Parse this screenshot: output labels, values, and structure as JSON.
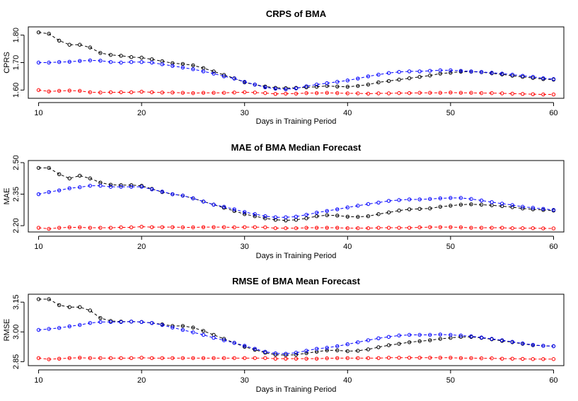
{
  "chart_data": [
    {
      "type": "line",
      "title": "CRPS of BMA",
      "xlabel": "Days in Training Period",
      "ylabel": "CPRS",
      "xlim": [
        9,
        61
      ],
      "ylim": [
        1.57,
        1.83
      ],
      "xticks": [
        10,
        20,
        30,
        40,
        50,
        60
      ],
      "yticks": [
        1.6,
        1.7,
        1.8
      ],
      "ytick_labels": [
        "1.60",
        "1.70",
        "1.80"
      ],
      "x": [
        10,
        11,
        12,
        13,
        14,
        15,
        16,
        17,
        18,
        19,
        20,
        21,
        22,
        23,
        24,
        25,
        26,
        27,
        28,
        29,
        30,
        31,
        32,
        33,
        34,
        35,
        36,
        37,
        38,
        39,
        40,
        41,
        42,
        43,
        44,
        45,
        46,
        47,
        48,
        49,
        50,
        51,
        52,
        53,
        54,
        55,
        56,
        57,
        58,
        59,
        60
      ],
      "series": [
        {
          "color": "#000000",
          "values": [
            1.81,
            1.805,
            1.78,
            1.765,
            1.765,
            1.755,
            1.735,
            1.728,
            1.725,
            1.72,
            1.718,
            1.712,
            1.705,
            1.698,
            1.695,
            1.69,
            1.68,
            1.668,
            1.655,
            1.643,
            1.628,
            1.62,
            1.613,
            1.608,
            1.607,
            1.608,
            1.61,
            1.612,
            1.615,
            1.613,
            1.612,
            1.615,
            1.62,
            1.628,
            1.633,
            1.638,
            1.643,
            1.648,
            1.653,
            1.66,
            1.663,
            1.667,
            1.667,
            1.665,
            1.661,
            1.657,
            1.652,
            1.648,
            1.644,
            1.64,
            1.638
          ]
        },
        {
          "color": "#0000ff",
          "values": [
            1.7,
            1.7,
            1.702,
            1.703,
            1.706,
            1.708,
            1.707,
            1.702,
            1.7,
            1.702,
            1.702,
            1.7,
            1.694,
            1.688,
            1.682,
            1.676,
            1.668,
            1.66,
            1.65,
            1.642,
            1.63,
            1.62,
            1.61,
            1.605,
            1.603,
            1.606,
            1.614,
            1.62,
            1.625,
            1.63,
            1.635,
            1.642,
            1.65,
            1.656,
            1.662,
            1.666,
            1.668,
            1.668,
            1.67,
            1.672,
            1.672,
            1.67,
            1.668,
            1.666,
            1.663,
            1.66,
            1.656,
            1.652,
            1.648,
            1.643,
            1.64
          ]
        },
        {
          "color": "#ff0000",
          "values": [
            1.6,
            1.595,
            1.597,
            1.598,
            1.597,
            1.592,
            1.591,
            1.592,
            1.592,
            1.592,
            1.594,
            1.592,
            1.591,
            1.591,
            1.59,
            1.589,
            1.59,
            1.59,
            1.59,
            1.591,
            1.592,
            1.591,
            1.589,
            1.586,
            1.587,
            1.587,
            1.589,
            1.589,
            1.59,
            1.589,
            1.588,
            1.588,
            1.587,
            1.588,
            1.588,
            1.589,
            1.589,
            1.59,
            1.59,
            1.59,
            1.591,
            1.59,
            1.59,
            1.589,
            1.589,
            1.588,
            1.587,
            1.586,
            1.585,
            1.584,
            1.584
          ]
        }
      ]
    },
    {
      "type": "line",
      "title": "MAE of BMA Median Forecast",
      "xlabel": "Days in Training Period",
      "ylabel": "MAE",
      "xlim": [
        9,
        61
      ],
      "ylim": [
        2.17,
        2.51
      ],
      "xticks": [
        10,
        20,
        30,
        40,
        50,
        60
      ],
      "yticks": [
        2.2,
        2.35,
        2.5
      ],
      "ytick_labels": [
        "2.20",
        "2.35",
        "2.50"
      ],
      "x": [
        10,
        11,
        12,
        13,
        14,
        15,
        16,
        17,
        18,
        19,
        20,
        21,
        22,
        23,
        24,
        25,
        26,
        27,
        28,
        29,
        30,
        31,
        32,
        33,
        34,
        35,
        36,
        37,
        38,
        39,
        40,
        41,
        42,
        43,
        44,
        45,
        46,
        47,
        48,
        49,
        50,
        51,
        52,
        53,
        54,
        55,
        56,
        57,
        58,
        59,
        60
      ],
      "series": [
        {
          "color": "#000000",
          "values": [
            2.475,
            2.475,
            2.445,
            2.425,
            2.438,
            2.425,
            2.405,
            2.395,
            2.393,
            2.393,
            2.39,
            2.375,
            2.36,
            2.35,
            2.343,
            2.33,
            2.315,
            2.3,
            2.285,
            2.27,
            2.255,
            2.245,
            2.235,
            2.228,
            2.225,
            2.228,
            2.235,
            2.245,
            2.25,
            2.248,
            2.243,
            2.242,
            2.245,
            2.255,
            2.263,
            2.272,
            2.278,
            2.28,
            2.282,
            2.29,
            2.295,
            2.3,
            2.302,
            2.3,
            2.297,
            2.293,
            2.288,
            2.282,
            2.278,
            2.275,
            2.272
          ]
        },
        {
          "color": "#0000ff",
          "values": [
            2.35,
            2.36,
            2.368,
            2.378,
            2.383,
            2.39,
            2.39,
            2.385,
            2.385,
            2.385,
            2.385,
            2.373,
            2.362,
            2.35,
            2.343,
            2.33,
            2.315,
            2.3,
            2.29,
            2.278,
            2.265,
            2.255,
            2.245,
            2.24,
            2.24,
            2.243,
            2.252,
            2.262,
            2.27,
            2.278,
            2.287,
            2.295,
            2.303,
            2.31,
            2.318,
            2.322,
            2.325,
            2.325,
            2.327,
            2.33,
            2.332,
            2.332,
            2.327,
            2.32,
            2.312,
            2.305,
            2.298,
            2.29,
            2.285,
            2.28,
            2.275
          ]
        },
        {
          "color": "#ff0000",
          "values": [
            2.19,
            2.185,
            2.19,
            2.192,
            2.192,
            2.19,
            2.19,
            2.19,
            2.192,
            2.192,
            2.195,
            2.193,
            2.193,
            2.193,
            2.192,
            2.192,
            2.193,
            2.193,
            2.193,
            2.192,
            2.193,
            2.193,
            2.192,
            2.188,
            2.188,
            2.188,
            2.19,
            2.19,
            2.19,
            2.19,
            2.188,
            2.188,
            2.188,
            2.19,
            2.19,
            2.19,
            2.19,
            2.192,
            2.193,
            2.193,
            2.193,
            2.192,
            2.19,
            2.19,
            2.19,
            2.19,
            2.188,
            2.188,
            2.188,
            2.187,
            2.187
          ]
        }
      ]
    },
    {
      "type": "line",
      "title": "RMSE of BMA Mean Forecast",
      "xlabel": "Days in Training Period",
      "ylabel": "RMSE",
      "xlim": [
        9,
        61
      ],
      "ylim": [
        2.83,
        3.19
      ],
      "xticks": [
        10,
        20,
        30,
        40,
        50,
        60
      ],
      "yticks": [
        2.85,
        3.0,
        3.15
      ],
      "ytick_labels": [
        "2.85",
        "3.00",
        "3.15"
      ],
      "x": [
        10,
        11,
        12,
        13,
        14,
        15,
        16,
        17,
        18,
        19,
        20,
        21,
        22,
        23,
        24,
        25,
        26,
        27,
        28,
        29,
        30,
        31,
        32,
        33,
        34,
        35,
        36,
        37,
        38,
        39,
        40,
        41,
        42,
        43,
        44,
        45,
        46,
        47,
        48,
        49,
        50,
        51,
        52,
        53,
        54,
        55,
        56,
        57,
        58,
        59,
        60
      ],
      "series": [
        {
          "color": "#000000",
          "values": [
            3.165,
            3.165,
            3.135,
            3.125,
            3.125,
            3.108,
            3.07,
            3.055,
            3.052,
            3.052,
            3.05,
            3.045,
            3.038,
            3.03,
            3.03,
            3.022,
            3.005,
            2.985,
            2.965,
            2.945,
            2.925,
            2.91,
            2.895,
            2.885,
            2.883,
            2.885,
            2.893,
            2.9,
            2.907,
            2.907,
            2.903,
            2.905,
            2.912,
            2.923,
            2.933,
            2.94,
            2.948,
            2.953,
            2.958,
            2.965,
            2.97,
            2.975,
            2.975,
            2.97,
            2.963,
            2.955,
            2.948,
            2.94,
            2.933,
            2.93,
            2.928
          ]
        },
        {
          "color": "#0000ff",
          "values": [
            3.01,
            3.015,
            3.02,
            3.028,
            3.035,
            3.045,
            3.05,
            3.05,
            3.05,
            3.052,
            3.05,
            3.045,
            3.035,
            3.022,
            3.01,
            2.998,
            2.985,
            2.97,
            2.958,
            2.945,
            2.93,
            2.915,
            2.9,
            2.892,
            2.89,
            2.895,
            2.905,
            2.915,
            2.92,
            2.928,
            2.938,
            2.948,
            2.958,
            2.968,
            2.975,
            2.982,
            2.985,
            2.985,
            2.985,
            2.987,
            2.985,
            2.982,
            2.978,
            2.972,
            2.965,
            2.958,
            2.95,
            2.942,
            2.935,
            2.93,
            2.928
          ]
        },
        {
          "color": "#ff0000",
          "values": [
            2.868,
            2.862,
            2.865,
            2.868,
            2.87,
            2.868,
            2.868,
            2.868,
            2.868,
            2.868,
            2.87,
            2.868,
            2.868,
            2.868,
            2.868,
            2.868,
            2.868,
            2.868,
            2.868,
            2.868,
            2.868,
            2.868,
            2.868,
            2.865,
            2.865,
            2.865,
            2.865,
            2.865,
            2.867,
            2.868,
            2.868,
            2.868,
            2.868,
            2.868,
            2.87,
            2.87,
            2.87,
            2.87,
            2.87,
            2.87,
            2.87,
            2.868,
            2.868,
            2.867,
            2.867,
            2.865,
            2.865,
            2.864,
            2.863,
            2.863,
            2.863
          ]
        }
      ]
    }
  ]
}
